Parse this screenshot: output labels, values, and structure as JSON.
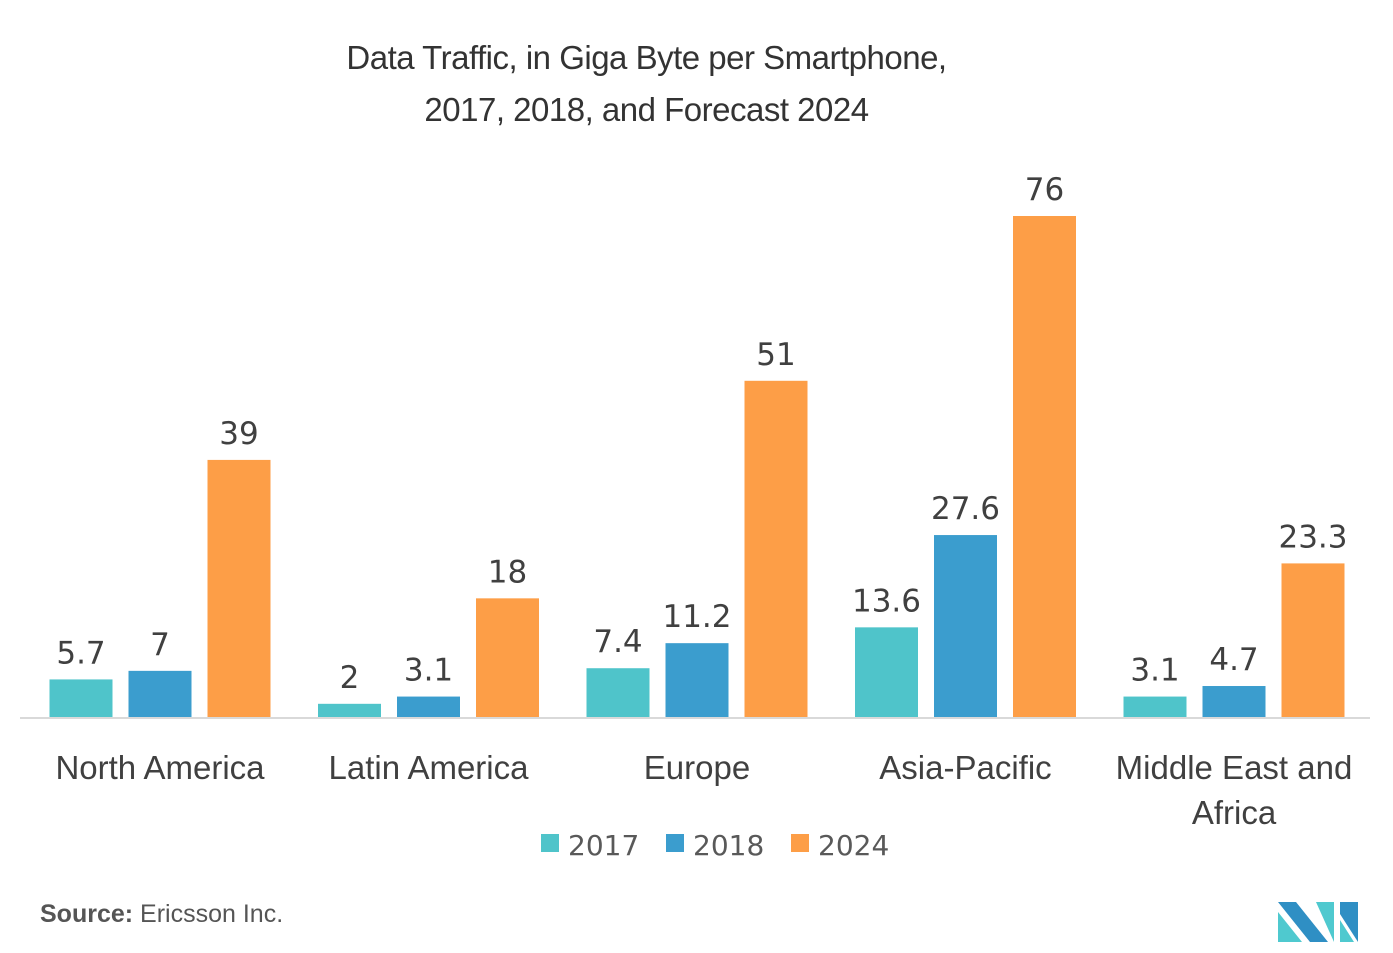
{
  "chart_data": {
    "type": "bar",
    "title": "Data Traffic, in Giga Byte per Smartphone,",
    "subtitle": "2017, 2018, and Forecast 2024",
    "categories": [
      "North America",
      "Latin America",
      "Europe",
      "Asia-Pacific",
      "Middle East and Africa"
    ],
    "category_lines": [
      [
        "North America"
      ],
      [
        "Latin America"
      ],
      [
        "Europe"
      ],
      [
        "Asia-Pacific"
      ],
      [
        "Middle East and",
        "Africa"
      ]
    ],
    "series": [
      {
        "name": "2017",
        "color": "#4fc4ca",
        "values": [
          5.7,
          2,
          7.4,
          13.6,
          3.1
        ],
        "labels": [
          "5.7",
          "2",
          "7.4",
          "13.6",
          "3.1"
        ]
      },
      {
        "name": "2018",
        "color": "#3b9dce",
        "values": [
          7,
          3.1,
          11.2,
          27.6,
          4.7
        ],
        "labels": [
          "7",
          "3.1",
          "11.2",
          "27.6",
          "4.7"
        ]
      },
      {
        "name": "2024",
        "color": "#fd9e47",
        "values": [
          39,
          18,
          51,
          76,
          23.3
        ],
        "labels": [
          "39",
          "18",
          "51",
          "76",
          "23.3"
        ]
      }
    ],
    "xlabel": "",
    "ylabel": "",
    "ylim": [
      0,
      76
    ],
    "grid": false,
    "legend": "bottom-center"
  },
  "source": {
    "label": "Source:",
    "text": " Ericsson Inc."
  },
  "colors": {
    "axis": "#d9d9d9",
    "label_text": "#404040",
    "legend_text": "#595959"
  }
}
